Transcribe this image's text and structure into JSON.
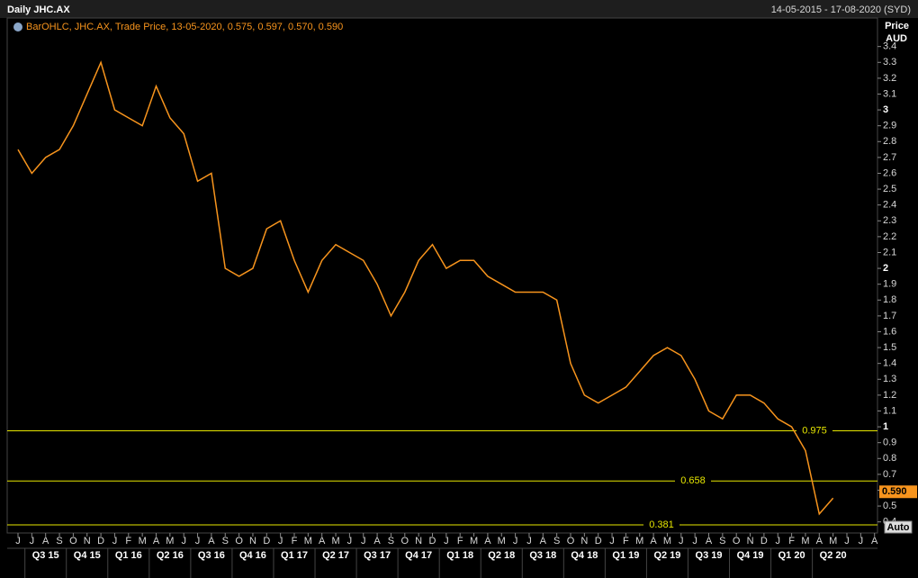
{
  "chart_data": {
    "type": "line",
    "title": "Daily JHC.AX",
    "date_range": "14-05-2015 - 17-08-2020 (SYD)",
    "legend_text": "BarOHLC, JHC.AX, Trade Price, 13-05-2020, 0.575, 0.597, 0.570, 0.590",
    "y_axis_label": [
      "Price",
      "AUD"
    ],
    "categories": [
      "J",
      "J",
      "A",
      "S",
      "O",
      "N",
      "D",
      "J",
      "F",
      "M",
      "A",
      "M",
      "J",
      "J",
      "A",
      "S",
      "O",
      "N",
      "D",
      "J",
      "F",
      "M",
      "A",
      "M",
      "J",
      "J",
      "A",
      "S",
      "O",
      "N",
      "D",
      "J",
      "F",
      "M",
      "A",
      "M",
      "J",
      "J",
      "A",
      "S",
      "O",
      "N",
      "D",
      "J",
      "F",
      "M",
      "A",
      "M",
      "J",
      "J",
      "A",
      "S",
      "O",
      "N",
      "D",
      "J",
      "F",
      "M",
      "A",
      "M",
      "J",
      "J",
      "A"
    ],
    "quarters": [
      "Q3 15",
      "Q4 15",
      "Q1 16",
      "Q2 16",
      "Q3 16",
      "Q4 16",
      "Q1 17",
      "Q2 17",
      "Q3 17",
      "Q4 17",
      "Q1 18",
      "Q2 18",
      "Q3 18",
      "Q4 18",
      "Q1 19",
      "Q2 19",
      "Q3 19",
      "Q4 19",
      "Q1 20",
      "Q2 20"
    ],
    "series": [
      {
        "name": "JHC.AX",
        "color": "#f7941d",
        "values": [
          2.75,
          2.6,
          2.7,
          2.75,
          2.9,
          3.1,
          3.3,
          3.0,
          2.95,
          2.9,
          3.15,
          2.95,
          2.85,
          2.55,
          2.6,
          2.0,
          1.95,
          2.0,
          2.25,
          2.3,
          2.05,
          1.85,
          2.05,
          2.15,
          2.1,
          2.05,
          1.9,
          1.7,
          1.85,
          2.05,
          2.15,
          2.0,
          2.05,
          2.05,
          1.95,
          1.9,
          1.85,
          1.85,
          1.85,
          1.8,
          1.4,
          1.2,
          1.15,
          1.2,
          1.25,
          1.35,
          1.45,
          1.5,
          1.45,
          1.3,
          1.1,
          1.05,
          1.2,
          1.2,
          1.15,
          1.05,
          1.0,
          0.85,
          0.45,
          0.55,
          null,
          null,
          null
        ]
      }
    ],
    "levels": [
      0.975,
      0.658,
      0.381
    ],
    "level_color": "#e6e600",
    "last_price": {
      "value": 0.59,
      "label": "0.590"
    },
    "auto_button": "Auto",
    "ylim": [
      0.33,
      3.58
    ],
    "yticks": [
      0.4,
      0.5,
      0.6,
      0.7,
      0.8,
      0.9,
      1,
      1.1,
      1.2,
      1.3,
      1.4,
      1.5,
      1.6,
      1.7,
      1.8,
      1.9,
      2,
      2.1,
      2.2,
      2.3,
      2.4,
      2.5,
      2.6,
      2.7,
      2.8,
      2.9,
      3,
      3.1,
      3.2,
      3.3,
      3.4
    ]
  }
}
